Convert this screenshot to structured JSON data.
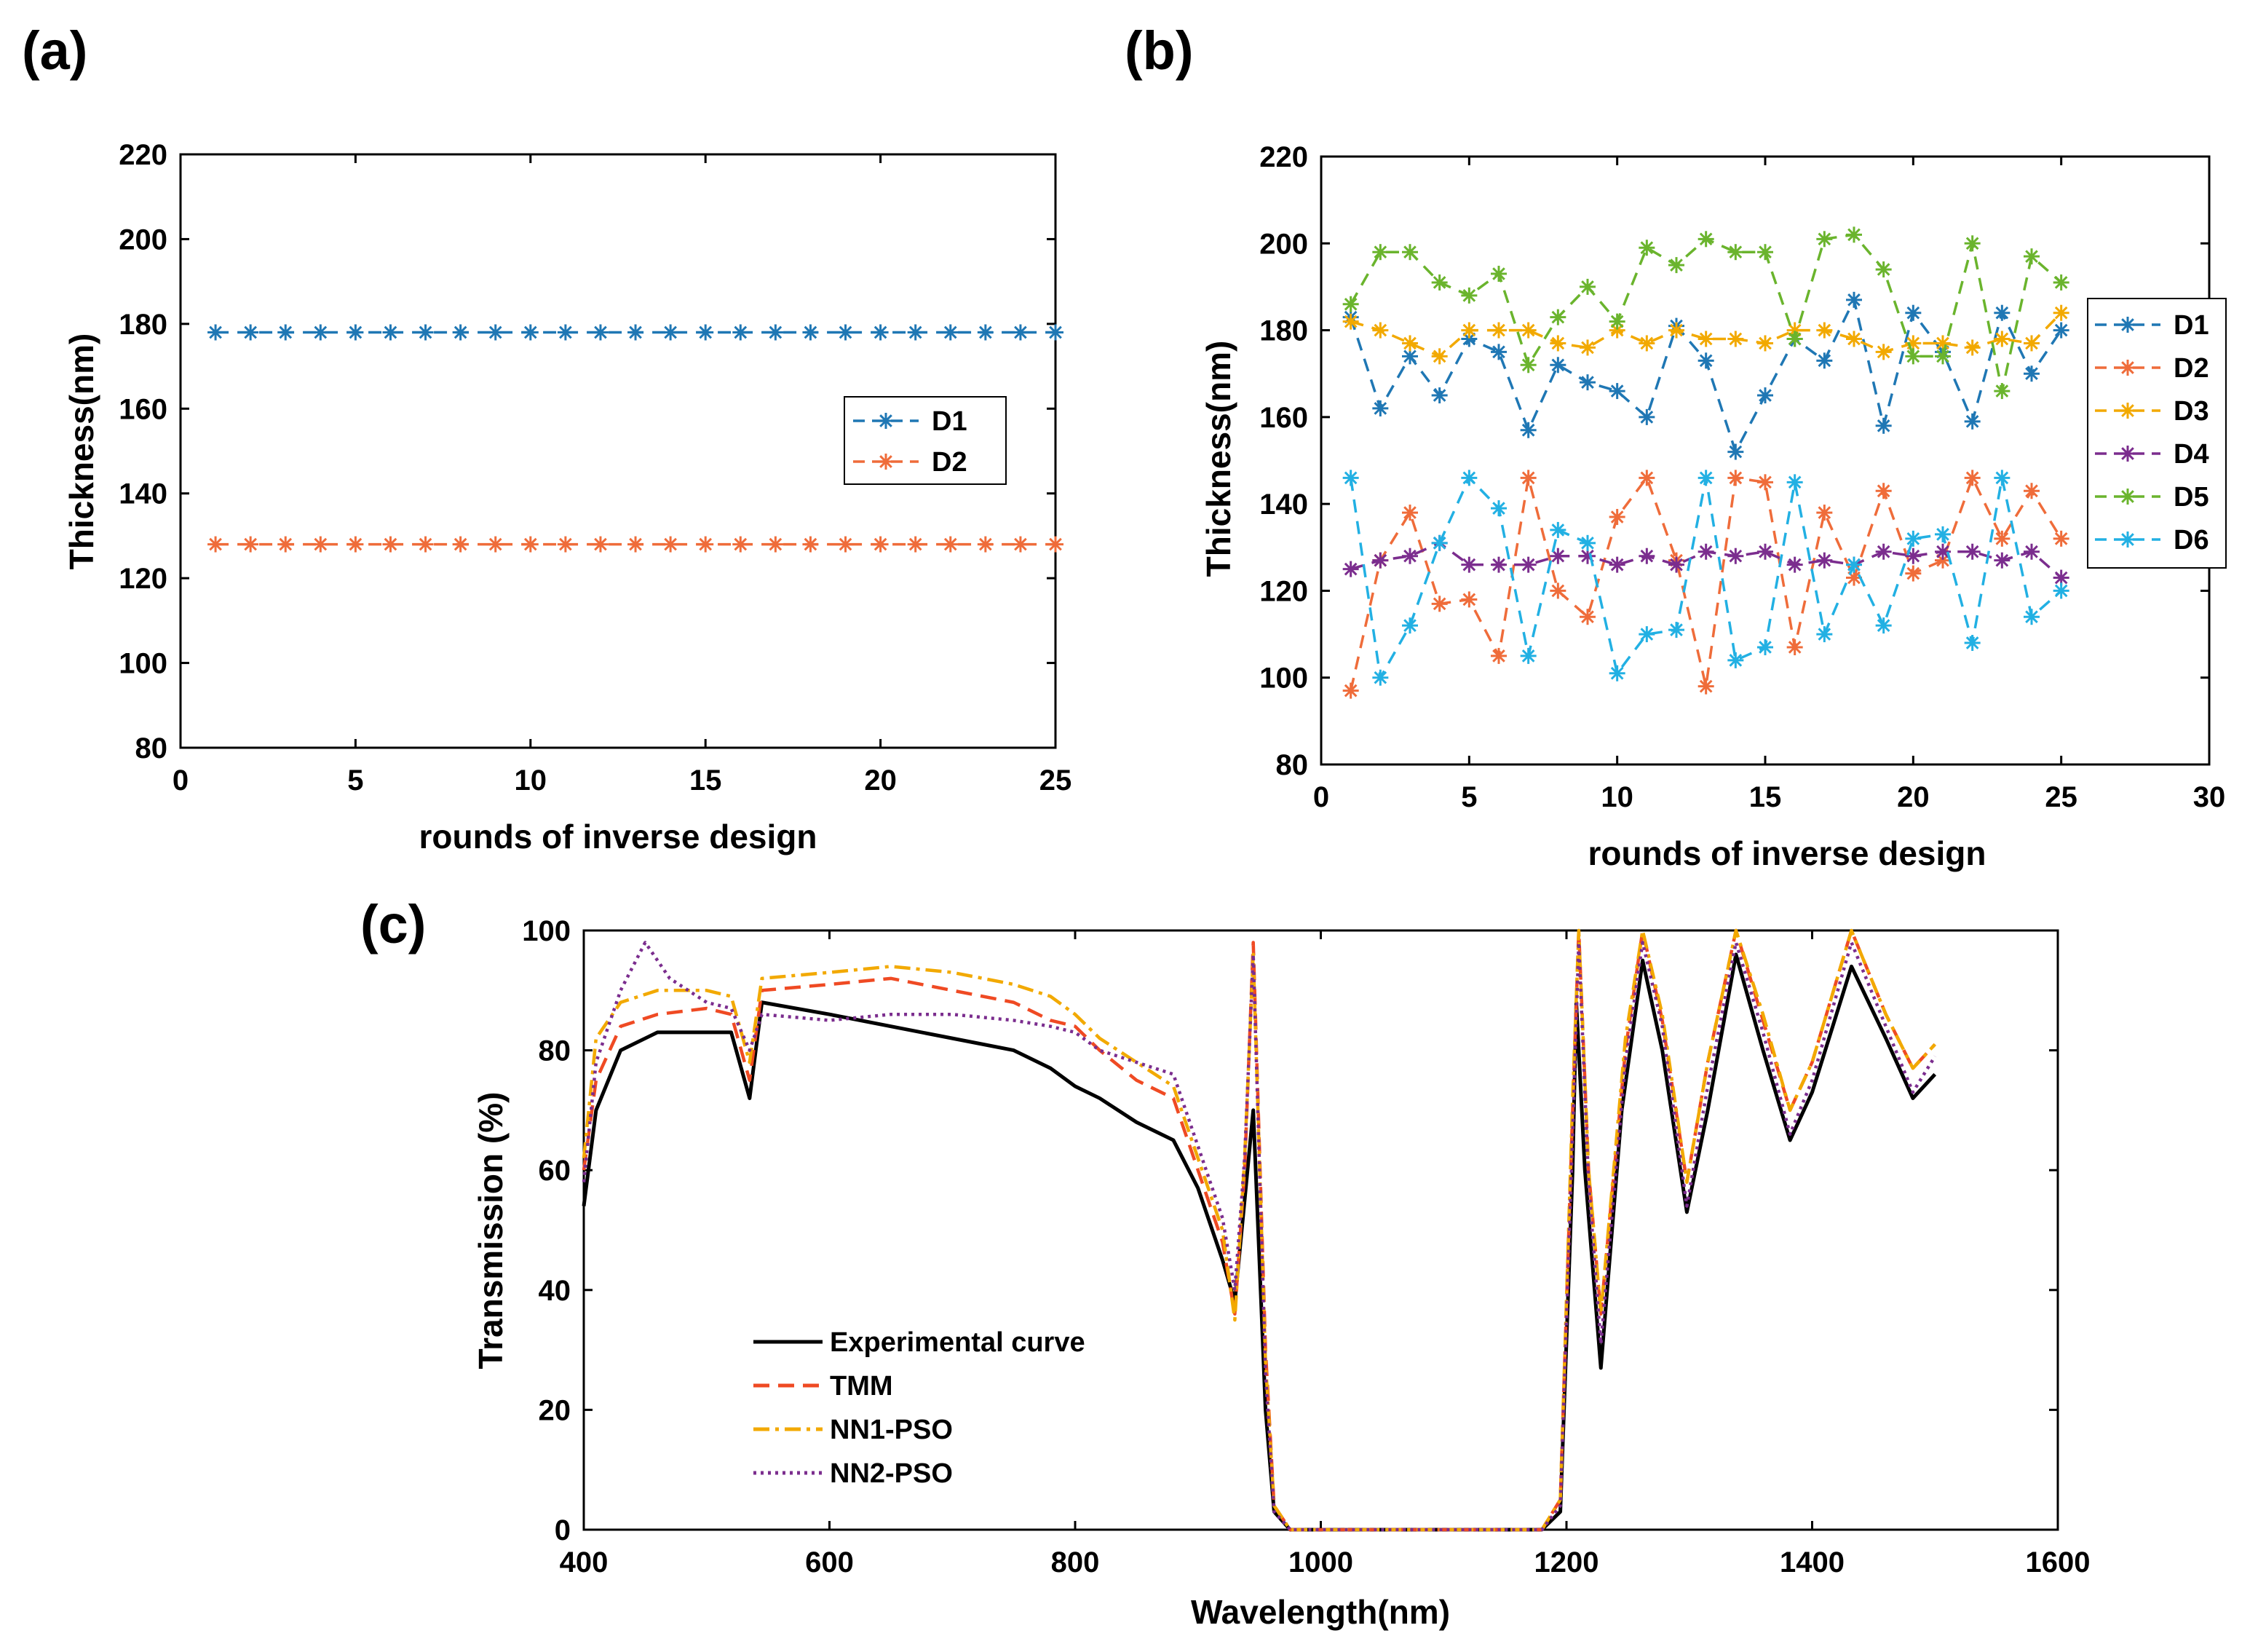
{
  "chart_data": [
    {
      "id": "a",
      "panel_label": "(a)",
      "type": "line",
      "xlabel": "rounds of inverse design",
      "ylabel": "Thickness(nm)",
      "xlim": [
        0,
        25
      ],
      "ylim": [
        80,
        220
      ],
      "xticks": [
        0,
        5,
        10,
        15,
        20,
        25
      ],
      "yticks": [
        80,
        100,
        120,
        140,
        160,
        180,
        200,
        220
      ],
      "legend_position": "right",
      "x": [
        1,
        2,
        3,
        4,
        5,
        6,
        7,
        8,
        9,
        10,
        11,
        12,
        13,
        14,
        15,
        16,
        17,
        18,
        19,
        20,
        21,
        22,
        23,
        24,
        25
      ],
      "series": [
        {
          "name": "D1",
          "color": "#1f77b4",
          "values": [
            178,
            178,
            178,
            178,
            178,
            178,
            178,
            178,
            178,
            178,
            178,
            178,
            178,
            178,
            178,
            178,
            178,
            178,
            178,
            178,
            178,
            178,
            178,
            178,
            178
          ]
        },
        {
          "name": "D2",
          "color": "#ef6c3a",
          "values": [
            128,
            128,
            128,
            128,
            128,
            128,
            128,
            128,
            128,
            128,
            128,
            128,
            128,
            128,
            128,
            128,
            128,
            128,
            128,
            128,
            128,
            128,
            128,
            128,
            128
          ]
        }
      ]
    },
    {
      "id": "b",
      "panel_label": "(b)",
      "type": "line",
      "xlabel": "rounds of inverse design",
      "ylabel": "Thickness(nm)",
      "xlim": [
        0,
        30
      ],
      "ylim": [
        80,
        220
      ],
      "xticks": [
        0,
        5,
        10,
        15,
        20,
        25,
        30
      ],
      "yticks": [
        80,
        100,
        120,
        140,
        160,
        180,
        200,
        220
      ],
      "legend_position": "right",
      "x": [
        1,
        2,
        3,
        4,
        5,
        6,
        7,
        8,
        9,
        10,
        11,
        12,
        13,
        14,
        15,
        16,
        17,
        18,
        19,
        20,
        21,
        22,
        23,
        24,
        25
      ],
      "series": [
        {
          "name": "D1",
          "color": "#1f77b4",
          "values": [
            183,
            162,
            174,
            165,
            178,
            175,
            157,
            172,
            168,
            166,
            160,
            181,
            173,
            152,
            165,
            178,
            173,
            187,
            158,
            184,
            175,
            159,
            184,
            170,
            180
          ]
        },
        {
          "name": "D2",
          "color": "#ef6c3a",
          "values": [
            97,
            127,
            138,
            117,
            118,
            105,
            146,
            120,
            114,
            137,
            146,
            127,
            98,
            146,
            145,
            107,
            138,
            123,
            143,
            124,
            127,
            146,
            132,
            143,
            132
          ]
        },
        {
          "name": "D3",
          "color": "#f2a900",
          "values": [
            182,
            180,
            177,
            174,
            180,
            180,
            180,
            177,
            176,
            180,
            177,
            180,
            178,
            178,
            177,
            180,
            180,
            178,
            175,
            177,
            177,
            176,
            178,
            177,
            184
          ]
        },
        {
          "name": "D4",
          "color": "#7b2d8e",
          "values": [
            125,
            127,
            128,
            131,
            126,
            126,
            126,
            128,
            128,
            126,
            128,
            126,
            129,
            128,
            129,
            126,
            127,
            126,
            129,
            128,
            129,
            129,
            127,
            129,
            123
          ]
        },
        {
          "name": "D5",
          "color": "#6ab42d",
          "values": [
            186,
            198,
            198,
            191,
            188,
            193,
            172,
            183,
            190,
            182,
            199,
            195,
            201,
            198,
            198,
            178,
            201,
            202,
            194,
            174,
            174,
            200,
            166,
            197,
            191
          ]
        },
        {
          "name": "D6",
          "color": "#22b0e3",
          "values": [
            146,
            100,
            112,
            131,
            146,
            139,
            105,
            134,
            131,
            101,
            110,
            111,
            146,
            104,
            107,
            145,
            110,
            126,
            112,
            132,
            133,
            108,
            146,
            114,
            120
          ]
        }
      ]
    },
    {
      "id": "c",
      "panel_label": "(c)",
      "type": "line",
      "xlabel": "Wavelength(nm)",
      "ylabel": "Transmission (%)",
      "xlim": [
        400,
        1600
      ],
      "ylim": [
        0,
        100
      ],
      "xticks": [
        400,
        600,
        800,
        1000,
        1200,
        1400,
        1600
      ],
      "yticks": [
        0,
        20,
        40,
        60,
        80,
        100
      ],
      "legend_position": "bottom-left",
      "series": [
        {
          "name": "Experimental curve",
          "color": "#000000",
          "style": "solid",
          "points": [
            [
              400,
              54
            ],
            [
              410,
              70
            ],
            [
              430,
              80
            ],
            [
              460,
              83
            ],
            [
              500,
              83
            ],
            [
              520,
              83
            ],
            [
              535,
              72
            ],
            [
              545,
              88
            ],
            [
              600,
              86
            ],
            [
              650,
              84
            ],
            [
              700,
              82
            ],
            [
              750,
              80
            ],
            [
              780,
              77
            ],
            [
              800,
              74
            ],
            [
              820,
              72
            ],
            [
              850,
              68
            ],
            [
              880,
              65
            ],
            [
              900,
              57
            ],
            [
              920,
              45
            ],
            [
              930,
              38
            ],
            [
              938,
              55
            ],
            [
              945,
              70
            ],
            [
              955,
              20
            ],
            [
              962,
              3
            ],
            [
              975,
              0
            ],
            [
              1100,
              0
            ],
            [
              1180,
              0
            ],
            [
              1195,
              3
            ],
            [
              1205,
              60
            ],
            [
              1208,
              88
            ],
            [
              1215,
              60
            ],
            [
              1228,
              27
            ],
            [
              1245,
              70
            ],
            [
              1262,
              95
            ],
            [
              1278,
              80
            ],
            [
              1298,
              53
            ],
            [
              1315,
              70
            ],
            [
              1338,
              96
            ],
            [
              1360,
              80
            ],
            [
              1382,
              65
            ],
            [
              1400,
              73
            ],
            [
              1432,
              94
            ],
            [
              1460,
              82
            ],
            [
              1482,
              72
            ],
            [
              1500,
              76
            ]
          ]
        },
        {
          "name": "TMM",
          "color": "#ef4a23",
          "style": "dashed",
          "points": [
            [
              400,
              60
            ],
            [
              410,
              75
            ],
            [
              430,
              84
            ],
            [
              460,
              86
            ],
            [
              500,
              87
            ],
            [
              520,
              86
            ],
            [
              535,
              75
            ],
            [
              545,
              90
            ],
            [
              600,
              91
            ],
            [
              650,
              92
            ],
            [
              700,
              90
            ],
            [
              750,
              88
            ],
            [
              780,
              85
            ],
            [
              800,
              84
            ],
            [
              820,
              80
            ],
            [
              850,
              75
            ],
            [
              880,
              72
            ],
            [
              900,
              60
            ],
            [
              920,
              48
            ],
            [
              930,
              36
            ],
            [
              938,
              60
            ],
            [
              945,
              98
            ],
            [
              955,
              30
            ],
            [
              962,
              4
            ],
            [
              975,
              0
            ],
            [
              1100,
              0
            ],
            [
              1180,
              0
            ],
            [
              1195,
              5
            ],
            [
              1205,
              70
            ],
            [
              1210,
              100
            ],
            [
              1218,
              60
            ],
            [
              1228,
              36
            ],
            [
              1248,
              80
            ],
            [
              1262,
              100
            ],
            [
              1278,
              85
            ],
            [
              1298,
              58
            ],
            [
              1315,
              78
            ],
            [
              1338,
              100
            ],
            [
              1360,
              85
            ],
            [
              1382,
              70
            ],
            [
              1400,
              78
            ],
            [
              1432,
              100
            ],
            [
              1460,
              86
            ],
            [
              1482,
              77
            ],
            [
              1500,
              81
            ]
          ]
        },
        {
          "name": "NN1-PSO",
          "color": "#f2a900",
          "style": "dashdot",
          "points": [
            [
              400,
              62
            ],
            [
              410,
              82
            ],
            [
              430,
              88
            ],
            [
              460,
              90
            ],
            [
              500,
              90
            ],
            [
              520,
              89
            ],
            [
              535,
              78
            ],
            [
              545,
              92
            ],
            [
              600,
              93
            ],
            [
              650,
              94
            ],
            [
              700,
              93
            ],
            [
              750,
              91
            ],
            [
              780,
              89
            ],
            [
              800,
              86
            ],
            [
              820,
              82
            ],
            [
              850,
              78
            ],
            [
              880,
              74
            ],
            [
              900,
              62
            ],
            [
              920,
              50
            ],
            [
              930,
              35
            ],
            [
              938,
              62
            ],
            [
              945,
              96
            ],
            [
              955,
              28
            ],
            [
              962,
              4
            ],
            [
              975,
              0
            ],
            [
              1100,
              0
            ],
            [
              1180,
              0
            ],
            [
              1195,
              5
            ],
            [
              1205,
              72
            ],
            [
              1210,
              100
            ],
            [
              1218,
              60
            ],
            [
              1228,
              36
            ],
            [
              1248,
              82
            ],
            [
              1262,
              100
            ],
            [
              1278,
              86
            ],
            [
              1298,
              58
            ],
            [
              1315,
              78
            ],
            [
              1338,
              100
            ],
            [
              1360,
              86
            ],
            [
              1382,
              70
            ],
            [
              1400,
              78
            ],
            [
              1432,
              100
            ],
            [
              1460,
              86
            ],
            [
              1482,
              77
            ],
            [
              1500,
              81
            ]
          ]
        },
        {
          "name": "NN2-PSO",
          "color": "#7b2d8e",
          "style": "dotted",
          "points": [
            [
              400,
              58
            ],
            [
              410,
              78
            ],
            [
              430,
              90
            ],
            [
              450,
              98
            ],
            [
              470,
              92
            ],
            [
              500,
              88
            ],
            [
              520,
              87
            ],
            [
              535,
              80
            ],
            [
              545,
              86
            ],
            [
              600,
              85
            ],
            [
              650,
              86
            ],
            [
              700,
              86
            ],
            [
              750,
              85
            ],
            [
              780,
              84
            ],
            [
              800,
              83
            ],
            [
              820,
              80
            ],
            [
              850,
              78
            ],
            [
              880,
              76
            ],
            [
              900,
              64
            ],
            [
              920,
              52
            ],
            [
              930,
              40
            ],
            [
              938,
              62
            ],
            [
              945,
              96
            ],
            [
              955,
              26
            ],
            [
              962,
              3
            ],
            [
              975,
              0
            ],
            [
              1100,
              0
            ],
            [
              1180,
              0
            ],
            [
              1195,
              4
            ],
            [
              1205,
              66
            ],
            [
              1210,
              98
            ],
            [
              1218,
              58
            ],
            [
              1228,
              31
            ],
            [
              1248,
              78
            ],
            [
              1262,
              98
            ],
            [
              1278,
              84
            ],
            [
              1298,
              54
            ],
            [
              1315,
              74
            ],
            [
              1338,
              98
            ],
            [
              1360,
              83
            ],
            [
              1382,
              66
            ],
            [
              1400,
              75
            ],
            [
              1432,
              98
            ],
            [
              1460,
              84
            ],
            [
              1482,
              73
            ],
            [
              1500,
              79
            ]
          ]
        }
      ]
    }
  ]
}
